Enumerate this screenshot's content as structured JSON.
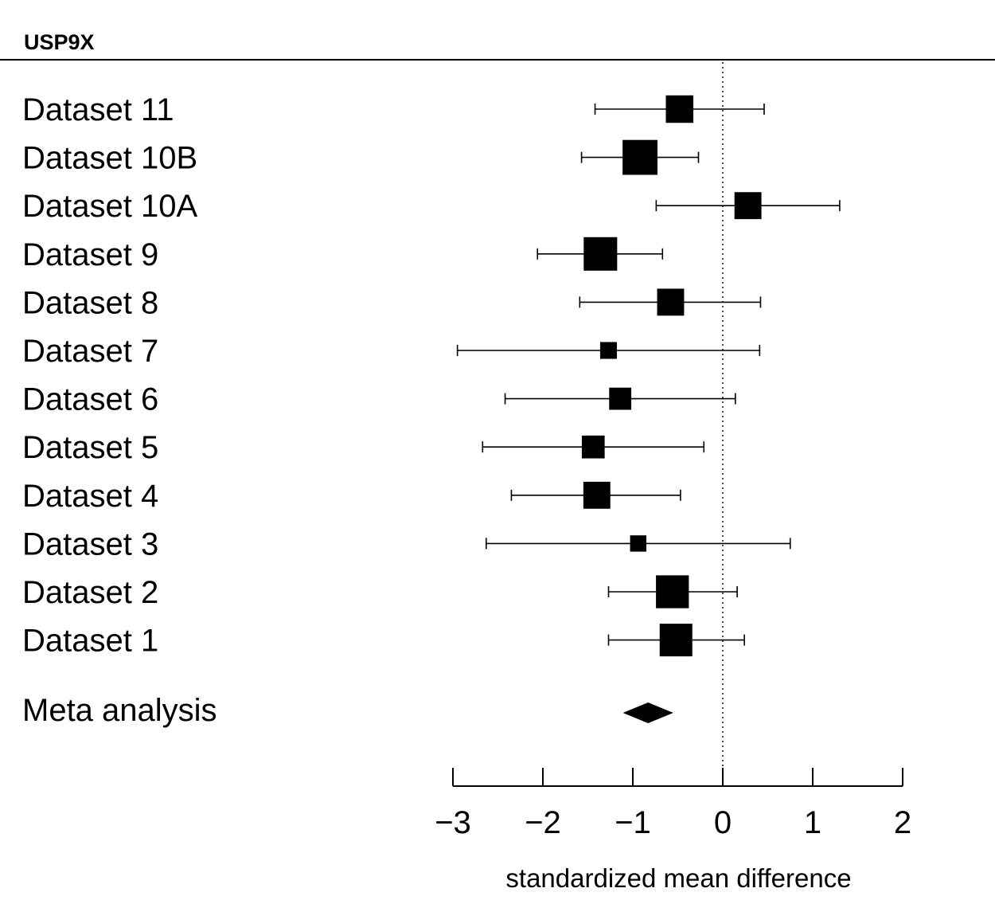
{
  "chart_data": {
    "type": "forest",
    "title": "USP9X",
    "xlabel": "standardized mean difference",
    "xlim": [
      -3,
      2
    ],
    "xticks": [
      -3,
      -2,
      -1,
      0,
      1,
      2
    ],
    "xtick_labels": [
      "−3",
      "−2",
      "−1",
      "0",
      "1",
      "2"
    ],
    "reference_line": 0,
    "studies": [
      {
        "label": "Dataset 11",
        "estimate": -0.48,
        "ci_low": -1.42,
        "ci_high": 0.46,
        "weight": 4.2
      },
      {
        "label": "Dataset 10B",
        "estimate": -0.92,
        "ci_low": -1.57,
        "ci_high": -0.27,
        "weight": 7.5
      },
      {
        "label": "Dataset 10A",
        "estimate": 0.28,
        "ci_low": -0.74,
        "ci_high": 1.3,
        "weight": 4.0
      },
      {
        "label": "Dataset 9",
        "estimate": -1.36,
        "ci_low": -2.06,
        "ci_high": -0.67,
        "weight": 6.8
      },
      {
        "label": "Dataset 8",
        "estimate": -0.58,
        "ci_low": -1.59,
        "ci_high": 0.42,
        "weight": 4.0
      },
      {
        "label": "Dataset 7",
        "estimate": -1.27,
        "ci_low": -2.95,
        "ci_high": 0.41,
        "weight": 1.1
      },
      {
        "label": "Dataset 6",
        "estimate": -1.14,
        "ci_low": -2.42,
        "ci_high": 0.14,
        "weight": 2.4
      },
      {
        "label": "Dataset 5",
        "estimate": -1.44,
        "ci_low": -2.67,
        "ci_high": -0.21,
        "weight": 2.6
      },
      {
        "label": "Dataset 4",
        "estimate": -1.4,
        "ci_low": -2.35,
        "ci_high": -0.47,
        "weight": 4.0
      },
      {
        "label": "Dataset 3",
        "estimate": -0.94,
        "ci_low": -2.63,
        "ci_high": 0.75,
        "weight": 1.0
      },
      {
        "label": "Dataset 2",
        "estimate": -0.56,
        "ci_low": -1.27,
        "ci_high": 0.16,
        "weight": 6.5
      },
      {
        "label": "Dataset 1",
        "estimate": -0.52,
        "ci_low": -1.27,
        "ci_high": 0.24,
        "weight": 6.4
      }
    ],
    "summary": {
      "label": "Meta analysis",
      "estimate": -0.83,
      "ci_low": -1.11,
      "ci_high": -0.55
    }
  }
}
